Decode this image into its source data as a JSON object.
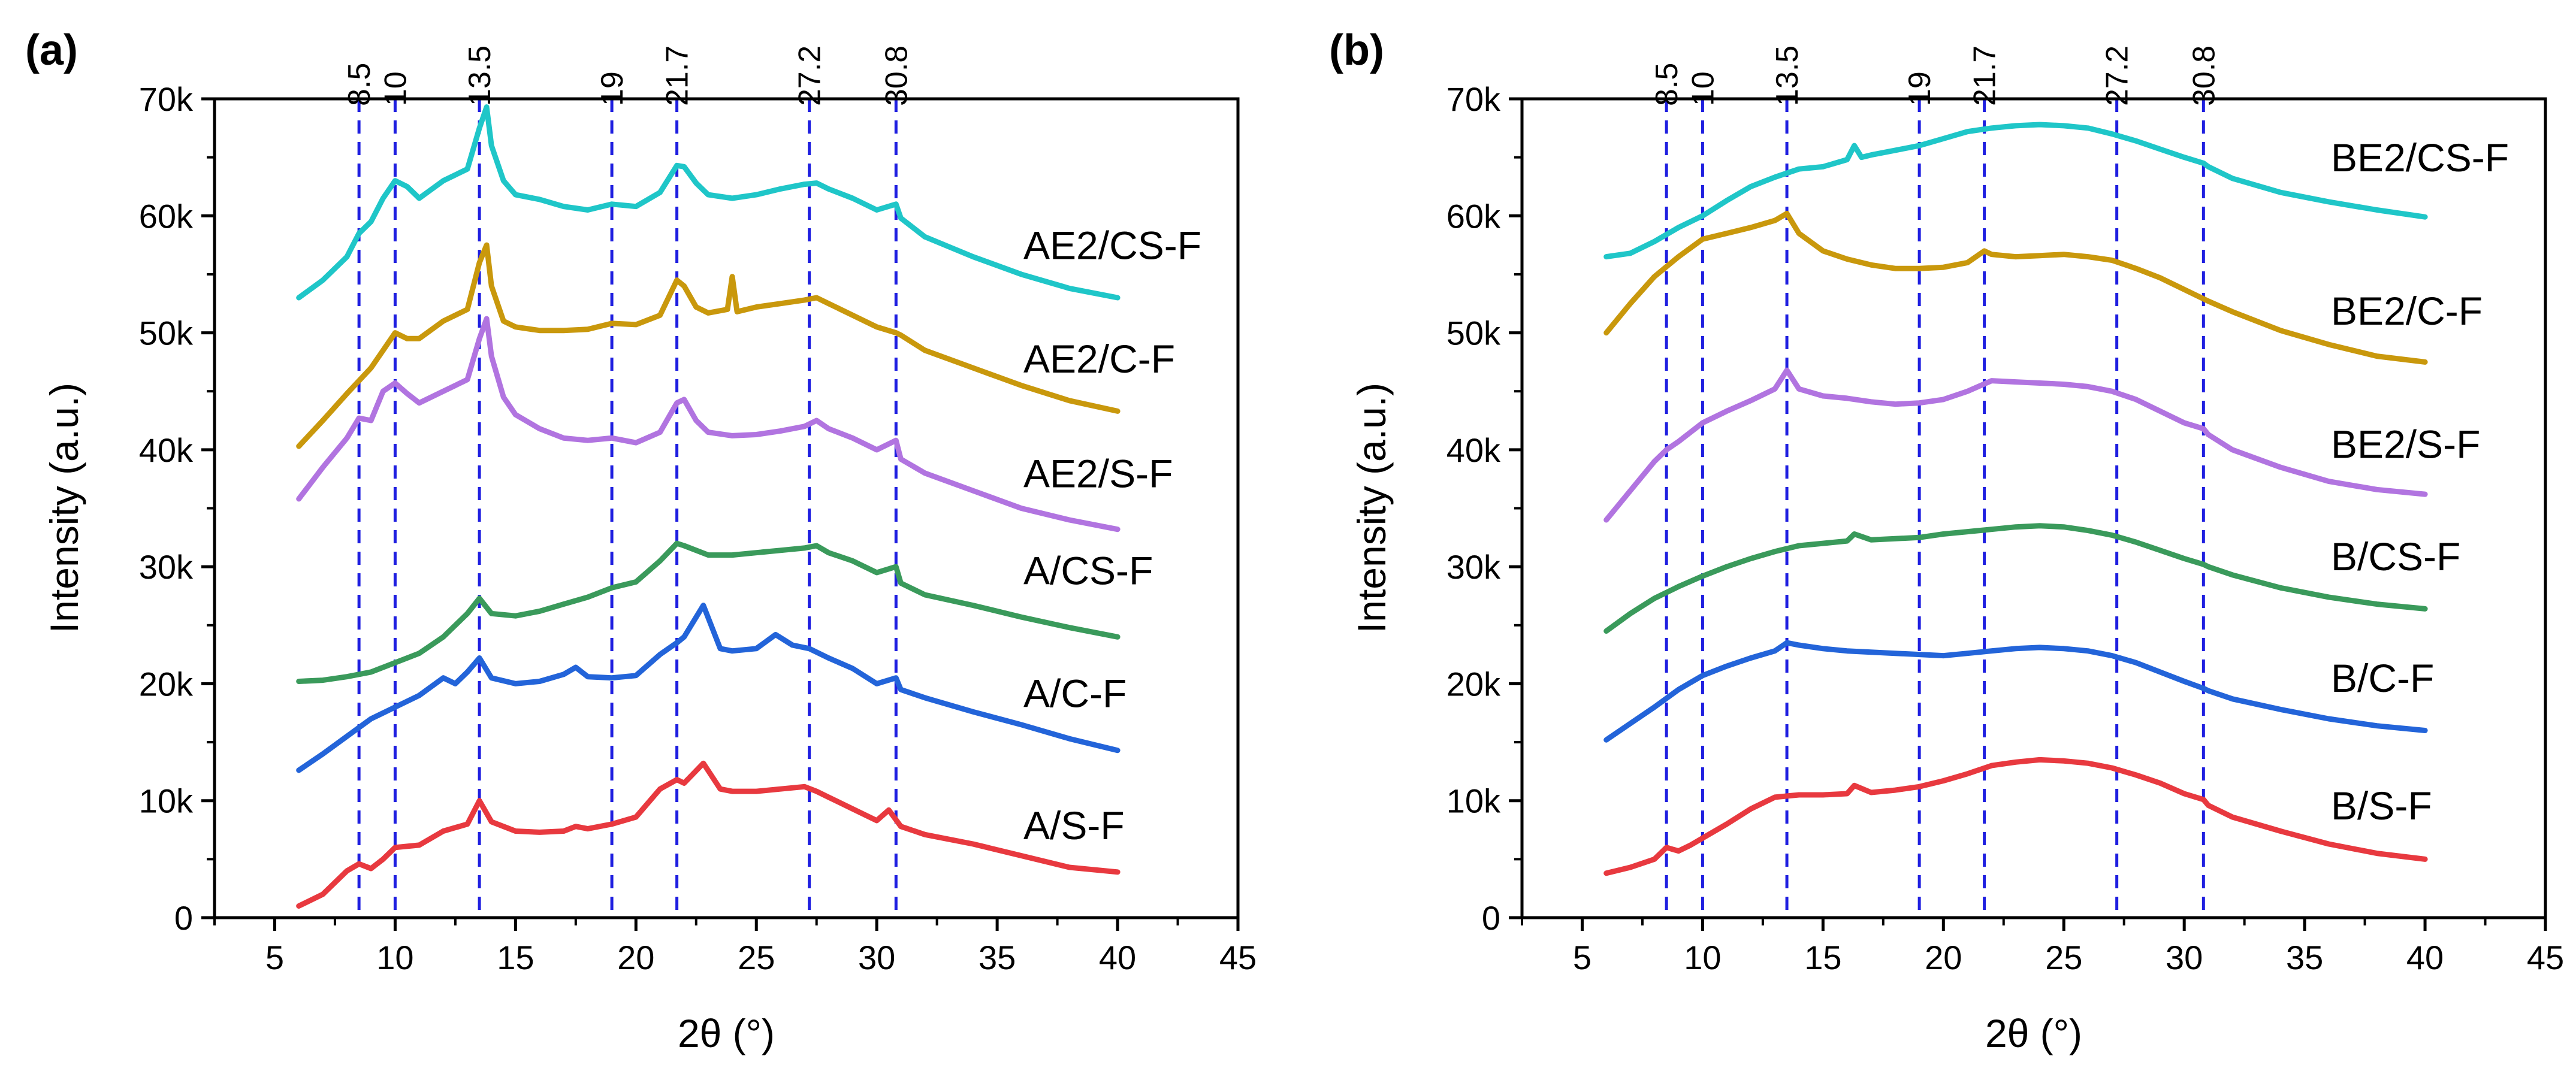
{
  "figure": {
    "panels": [
      "(a)",
      "(b)"
    ]
  },
  "chart_data": [
    {
      "panel": "(a)",
      "type": "line",
      "xlabel": "2θ (°)",
      "ylabel": "Intensity (a.u.)",
      "xlim": [
        2.5,
        45
      ],
      "ylim": [
        0,
        70000
      ],
      "xticks": [
        5,
        10,
        15,
        20,
        25,
        30,
        35,
        40,
        45
      ],
      "xtick_labels": [
        "5",
        "10",
        "15",
        "20",
        "25",
        "30",
        "35",
        "40",
        "45"
      ],
      "yticks": [
        0,
        10000,
        20000,
        30000,
        40000,
        50000,
        60000,
        70000
      ],
      "ytick_labels": [
        "0",
        "10k",
        "20k",
        "30k",
        "40k",
        "50k",
        "60k",
        "70k"
      ],
      "reference_lines": [
        8.5,
        10,
        13.5,
        19,
        21.7,
        27.2,
        30.8
      ],
      "reference_labels": [
        "8.5",
        "10",
        "13.5",
        "19",
        "21.7",
        "27.2",
        "30.8"
      ],
      "reference_color": "#1f1fe0",
      "series": [
        {
          "name": "A/S-F",
          "color": "#e8393f",
          "label_y": 6700,
          "x": [
            6,
            7,
            8,
            8.5,
            9,
            9.5,
            10,
            11,
            12,
            13,
            13.5,
            14,
            15,
            16,
            17,
            17.5,
            18,
            19,
            20,
            21,
            21.7,
            22,
            22.8,
            23.5,
            24,
            25,
            26,
            27,
            27.5,
            28,
            29,
            30,
            30.5,
            31,
            32,
            34,
            36,
            38,
            40
          ],
          "y": [
            1000,
            2000,
            4000,
            4600,
            4200,
            5000,
            6000,
            6200,
            7400,
            8000,
            10000,
            8200,
            7400,
            7300,
            7400,
            7800,
            7600,
            8000,
            8600,
            11000,
            11800,
            11500,
            13200,
            11000,
            10800,
            10800,
            11000,
            11200,
            10800,
            10300,
            9300,
            8300,
            9200,
            7800,
            7100,
            6300,
            5300,
            4300,
            3900
          ]
        },
        {
          "name": "A/C-F",
          "color": "#2364d9",
          "label_y": 18000,
          "x": [
            6,
            7,
            8,
            9,
            10,
            11,
            12,
            12.5,
            13,
            13.5,
            14,
            15,
            16,
            17,
            17.5,
            18,
            19,
            20,
            21,
            21.7,
            22,
            22.8,
            23.5,
            24,
            25,
            25.8,
            26.5,
            27.2,
            28,
            29,
            30,
            30.8,
            31,
            32,
            34,
            36,
            38,
            40
          ],
          "y": [
            12600,
            14000,
            15500,
            17000,
            18000,
            19000,
            20500,
            20000,
            21000,
            22200,
            20500,
            20000,
            20200,
            20800,
            21400,
            20600,
            20500,
            20700,
            22500,
            23500,
            24000,
            26700,
            23000,
            22800,
            23000,
            24200,
            23300,
            23000,
            22200,
            21300,
            20000,
            20500,
            19500,
            18800,
            17600,
            16500,
            15300,
            14300
          ]
        },
        {
          "name": "A/CS-F",
          "color": "#3a9a5b",
          "label_y": 28500,
          "x": [
            6,
            7,
            8,
            9,
            10,
            11,
            12,
            13,
            13.5,
            14,
            15,
            16,
            17,
            18,
            19,
            20,
            21,
            21.7,
            22,
            23,
            24,
            25,
            26,
            27,
            27.5,
            28,
            29,
            30,
            30.8,
            31,
            32,
            34,
            36,
            38,
            40
          ],
          "y": [
            20200,
            20300,
            20600,
            21000,
            21800,
            22600,
            24000,
            26000,
            27300,
            26000,
            25800,
            26200,
            26800,
            27400,
            28200,
            28700,
            30500,
            32000,
            31800,
            31000,
            31000,
            31200,
            31400,
            31600,
            31800,
            31200,
            30500,
            29500,
            30000,
            28600,
            27600,
            26700,
            25700,
            24800,
            24000
          ]
        },
        {
          "name": "AE2/S-F",
          "color": "#b174e0",
          "label_y": 36800,
          "x": [
            6,
            7,
            8,
            8.5,
            9,
            9.5,
            10,
            10.5,
            11,
            12,
            13,
            13.5,
            13.8,
            14,
            14.5,
            15,
            16,
            17,
            18,
            19,
            20,
            21,
            21.7,
            22,
            22.5,
            23,
            24,
            25,
            26,
            27,
            27.5,
            28,
            29,
            30,
            30.8,
            31,
            32,
            34,
            36,
            38,
            40
          ],
          "y": [
            35800,
            38500,
            41000,
            42700,
            42500,
            45000,
            45700,
            44800,
            44000,
            45000,
            46000,
            49500,
            51200,
            48000,
            44500,
            43000,
            41800,
            41000,
            40800,
            41000,
            40600,
            41500,
            44000,
            44300,
            42500,
            41500,
            41200,
            41300,
            41600,
            42000,
            42500,
            41800,
            41000,
            40000,
            40800,
            39200,
            38000,
            36500,
            35000,
            34000,
            33200
          ]
        },
        {
          "name": "AE2/C-F",
          "color": "#c9980c",
          "label_y": 46600,
          "x": [
            6,
            7,
            8,
            9,
            9.5,
            10,
            10.5,
            11,
            12,
            13,
            13.5,
            13.8,
            14,
            14.5,
            15,
            16,
            17,
            18,
            19,
            20,
            21,
            21.7,
            22,
            22.5,
            23,
            23.8,
            24,
            24.2,
            25,
            26,
            27,
            27.5,
            28,
            29,
            30,
            30.8,
            31,
            32,
            34,
            36,
            38,
            40
          ],
          "y": [
            40300,
            42500,
            44800,
            47000,
            48500,
            50000,
            49500,
            49500,
            51000,
            52000,
            56000,
            57500,
            54000,
            51000,
            50500,
            50200,
            50200,
            50300,
            50800,
            50700,
            51500,
            54500,
            54000,
            52200,
            51700,
            52000,
            54800,
            51800,
            52200,
            52500,
            52800,
            53000,
            52500,
            51500,
            50500,
            50000,
            49800,
            48500,
            47000,
            45500,
            44200,
            43300
          ]
        },
        {
          "name": "AE2/CS-F",
          "color": "#1fc6c8",
          "label_y": 56300,
          "x": [
            6,
            7,
            8,
            8.5,
            9,
            9.5,
            10,
            10.5,
            11,
            12,
            13,
            13.5,
            13.8,
            14,
            14.5,
            15,
            16,
            17,
            18,
            19,
            20,
            21,
            21.7,
            22,
            22.5,
            23,
            24,
            25,
            26,
            27,
            27.5,
            28,
            29,
            30,
            30.8,
            31,
            32,
            34,
            36,
            38,
            40
          ],
          "y": [
            53000,
            54500,
            56500,
            58500,
            59500,
            61500,
            63000,
            62500,
            61500,
            63000,
            64000,
            67500,
            69300,
            66000,
            63000,
            61800,
            61400,
            60800,
            60500,
            61000,
            60800,
            62000,
            64300,
            64200,
            62800,
            61800,
            61500,
            61800,
            62300,
            62700,
            62800,
            62300,
            61500,
            60500,
            61000,
            59800,
            58200,
            56500,
            55000,
            53800,
            53000
          ]
        }
      ]
    },
    {
      "panel": "(b)",
      "type": "line",
      "xlabel": "2θ (°)",
      "ylabel": "Intensity (a.u.)",
      "xlim": [
        2.5,
        45
      ],
      "ylim": [
        0,
        70000
      ],
      "xticks": [
        5,
        10,
        15,
        20,
        25,
        30,
        35,
        40,
        45
      ],
      "xtick_labels": [
        "5",
        "10",
        "15",
        "20",
        "25",
        "30",
        "35",
        "40",
        "45"
      ],
      "yticks": [
        0,
        10000,
        20000,
        30000,
        40000,
        50000,
        60000,
        70000
      ],
      "ytick_labels": [
        "0",
        "10k",
        "20k",
        "30k",
        "40k",
        "50k",
        "60k",
        "70k"
      ],
      "reference_lines": [
        8.5,
        10,
        13.5,
        19,
        21.7,
        27.2,
        30.8
      ],
      "reference_labels": [
        "8.5",
        "10",
        "13.5",
        "19",
        "21.7",
        "27.2",
        "30.8"
      ],
      "reference_color": "#1f1fe0",
      "series": [
        {
          "name": "B/S-F",
          "color": "#e8393f",
          "label_y": 8400,
          "x": [
            6,
            7,
            8,
            8.5,
            9,
            9.5,
            10,
            11,
            12,
            13,
            14,
            15,
            16,
            16.3,
            17,
            18,
            19,
            20,
            21,
            22,
            23,
            24,
            25,
            26,
            27,
            28,
            29,
            30,
            30.8,
            31,
            32,
            34,
            36,
            38,
            40
          ],
          "y": [
            3800,
            4300,
            5000,
            6000,
            5700,
            6200,
            6800,
            8000,
            9300,
            10300,
            10500,
            10500,
            10600,
            11300,
            10700,
            10900,
            11200,
            11700,
            12300,
            13000,
            13300,
            13500,
            13400,
            13200,
            12800,
            12200,
            11500,
            10600,
            10100,
            9600,
            8600,
            7400,
            6300,
            5500,
            5000
          ]
        },
        {
          "name": "B/C-F",
          "color": "#2364d9",
          "label_y": 19300,
          "x": [
            6,
            7,
            8,
            9,
            10,
            11,
            12,
            13,
            13.5,
            14,
            15,
            16,
            17,
            18,
            19,
            20,
            21,
            22,
            23,
            24,
            25,
            26,
            27,
            28,
            29,
            30,
            30.8,
            31,
            32,
            34,
            36,
            38,
            40
          ],
          "y": [
            15200,
            16600,
            18000,
            19500,
            20700,
            21500,
            22200,
            22800,
            23500,
            23300,
            23000,
            22800,
            22700,
            22600,
            22500,
            22400,
            22600,
            22800,
            23000,
            23100,
            23000,
            22800,
            22400,
            21800,
            21000,
            20200,
            19600,
            19400,
            18700,
            17800,
            17000,
            16400,
            16000
          ]
        },
        {
          "name": "B/CS-F",
          "color": "#3a9a5b",
          "label_y": 29700,
          "x": [
            6,
            7,
            8,
            9,
            10,
            11,
            12,
            13,
            14,
            15,
            16,
            16.3,
            17,
            18,
            19,
            20,
            21,
            22,
            23,
            24,
            25,
            26,
            27,
            28,
            29,
            30,
            30.8,
            31,
            32,
            34,
            36,
            38,
            40
          ],
          "y": [
            24500,
            26000,
            27300,
            28300,
            29200,
            30000,
            30700,
            31300,
            31800,
            32000,
            32200,
            32800,
            32300,
            32400,
            32500,
            32800,
            33000,
            33200,
            33400,
            33500,
            33400,
            33100,
            32700,
            32100,
            31400,
            30700,
            30200,
            30000,
            29300,
            28200,
            27400,
            26800,
            26400
          ]
        },
        {
          "name": "BE2/S-F",
          "color": "#b174e0",
          "label_y": 39300,
          "x": [
            6,
            7,
            8,
            8.5,
            9,
            10,
            11,
            12,
            13,
            13.5,
            14,
            15,
            16,
            17,
            18,
            19,
            20,
            21,
            22,
            23,
            24,
            25,
            26,
            27,
            28,
            29,
            30,
            30.8,
            31,
            32,
            34,
            36,
            38,
            40
          ],
          "y": [
            34000,
            36500,
            39000,
            40000,
            40700,
            42300,
            43300,
            44200,
            45200,
            46800,
            45200,
            44600,
            44400,
            44100,
            43900,
            44000,
            44300,
            45000,
            45900,
            45800,
            45700,
            45600,
            45400,
            45000,
            44300,
            43300,
            42300,
            41800,
            41300,
            40000,
            38500,
            37300,
            36600,
            36200
          ]
        },
        {
          "name": "BE2/C-F",
          "color": "#c9980c",
          "label_y": 50700,
          "x": [
            6,
            7,
            8,
            9,
            10,
            11,
            12,
            13,
            13.5,
            14,
            15,
            16,
            17,
            18,
            19,
            20,
            21,
            21.7,
            22,
            23,
            24,
            25,
            26,
            27,
            28,
            29,
            30,
            31,
            32,
            34,
            36,
            38,
            40
          ],
          "y": [
            50000,
            52500,
            54800,
            56500,
            58000,
            58500,
            59000,
            59600,
            60200,
            58500,
            57000,
            56300,
            55800,
            55500,
            55500,
            55600,
            56000,
            57000,
            56700,
            56500,
            56600,
            56700,
            56500,
            56200,
            55500,
            54700,
            53700,
            52700,
            51800,
            50200,
            49000,
            48000,
            47500
          ]
        },
        {
          "name": "BE2/CS-F",
          "color": "#1fc6c8",
          "label_y": 63800,
          "x": [
            6,
            7,
            8,
            9,
            10,
            11,
            12,
            13,
            14,
            15,
            16,
            16.3,
            16.6,
            17,
            18,
            19,
            20,
            21,
            22,
            23,
            24,
            25,
            26,
            27,
            28,
            29,
            30,
            30.8,
            31,
            32,
            34,
            36,
            38,
            40
          ],
          "y": [
            56500,
            56800,
            57800,
            59000,
            60000,
            61300,
            62500,
            63300,
            64000,
            64200,
            64800,
            66000,
            65000,
            65200,
            65600,
            66000,
            66600,
            67200,
            67500,
            67700,
            67800,
            67700,
            67500,
            67000,
            66400,
            65700,
            65000,
            64500,
            64200,
            63200,
            62000,
            61200,
            60500,
            59900
          ]
        }
      ]
    }
  ]
}
